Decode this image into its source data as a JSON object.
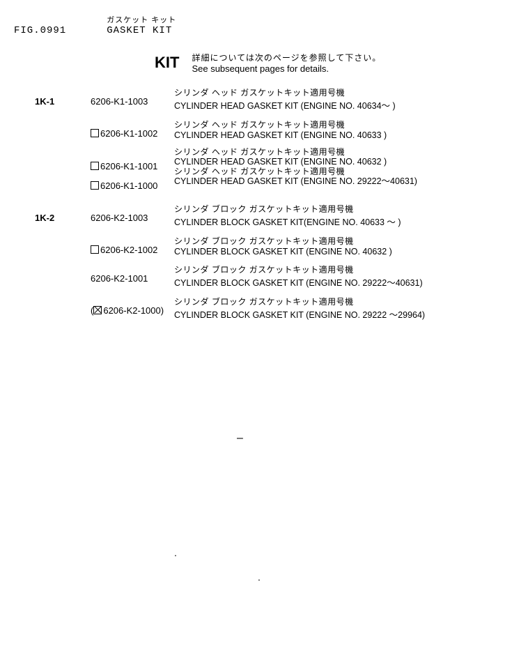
{
  "header": {
    "fig_label": "FIG.0991",
    "title_jp": "ガスケット キット",
    "title_en": "GASKET KIT"
  },
  "kit_line": {
    "word": "KIT",
    "note_jp": "詳細については次のページを参照して下さい。",
    "note_en": "See subsequent pages for details."
  },
  "entries": [
    {
      "ref": "1K-1",
      "part_prefix": "none",
      "part": "6206-K1-1003",
      "desc_jp": "シリンダ ヘッド ガスケットキット適用号機",
      "desc_en": "CYLINDER HEAD GASKET KIT (ENGINE NO. 40634～ )"
    },
    {
      "ref": "",
      "part_prefix": "box",
      "part": "6206-K1-1002",
      "desc_jp": "シリンダ ヘッド ガスケットキット適用号機",
      "desc_en": "CYLINDER HEAD GASKET KIT (ENGINE NO. 40633 )"
    },
    {
      "ref": "",
      "part_prefix": "box",
      "part": "6206-K1-1001",
      "desc_jp": "シリンダ ヘッド ガスケットキット適用号機",
      "desc_en": "CYLINDER HEAD GASKET KIT (ENGINE NO. 40632 )"
    },
    {
      "ref": "",
      "part_prefix": "box",
      "part": "6206-K1-1000",
      "desc_jp": "シリンダ ヘッド ガスケットキット適用号機",
      "desc_en": "CYLINDER HEAD GASKET KIT (ENGINE NO. 29222～40631)"
    },
    {
      "ref": "1K-2",
      "part_prefix": "none",
      "part": "6206-K2-1003",
      "desc_jp": "シリンダ ブロック ガスケットキット適用号機",
      "desc_en": "CYLINDER BLOCK GASKET KIT(ENGINE NO. 40633 ～ )"
    },
    {
      "ref": "",
      "part_prefix": "box",
      "part": "6206-K2-1002",
      "desc_jp": "シリンダ ブロック ガスケットキット適用号機",
      "desc_en": "CYLINDER BLOCK  GASKET KIT (ENGINE NO. 40632 )"
    },
    {
      "ref": "",
      "part_prefix": "none",
      "part": "6206-K2-1001",
      "desc_jp": "シリンダ ブロック ガスケットキット適用号機",
      "desc_en": "CYLINDER BLOCK  GASKET KIT (ENGINE NO. 29222～40631)"
    },
    {
      "ref": "",
      "part_prefix": "paren-xbox",
      "part": "6206-K2-1000)",
      "desc_jp": "シリンダ ブロック ガスケットキット適用号機",
      "desc_en": "CYLINDER BLOCK  GASKET KIT (ENGINE NO. 29222 ～29964)"
    }
  ]
}
